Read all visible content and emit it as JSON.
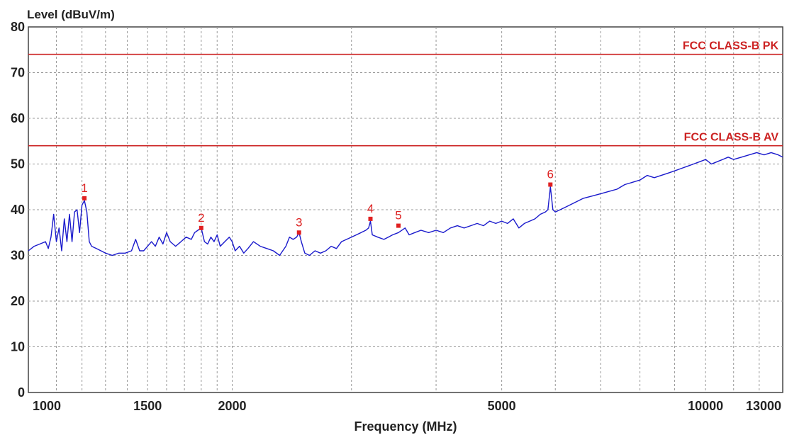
{
  "chart_data": {
    "type": "line",
    "title": "",
    "ylabel": "Level (dBuV/m)",
    "xlabel": "Frequency (MHz)",
    "x_scale": "log",
    "xlim": [
      1000,
      13000
    ],
    "ylim": [
      0,
      80
    ],
    "grid": true,
    "y_ticks": [
      "0",
      "10",
      "20",
      "30",
      "40",
      "50",
      "60",
      "70",
      "80"
    ],
    "x_ticks": [
      {
        "value": 1000,
        "label": "1000"
      },
      {
        "value": 1500,
        "label": "1500"
      },
      {
        "value": 2000,
        "label": "2000"
      },
      {
        "value": 5000,
        "label": "5000"
      },
      {
        "value": 10000,
        "label": "10000"
      },
      {
        "value": 13000,
        "label": "13000"
      }
    ],
    "limit_lines": [
      {
        "name": "FCC CLASS-B PK",
        "value": 74,
        "color": "#cc2222"
      },
      {
        "name": "FCC CLASS-B AV",
        "value": 54,
        "color": "#cc2222"
      }
    ],
    "series": [
      {
        "color": "#1a1acc",
        "points": [
          [
            1000,
            31
          ],
          [
            1020,
            32
          ],
          [
            1040,
            32.5
          ],
          [
            1060,
            33
          ],
          [
            1070,
            31.5
          ],
          [
            1080,
            34
          ],
          [
            1090,
            39
          ],
          [
            1100,
            33
          ],
          [
            1110,
            36
          ],
          [
            1120,
            31
          ],
          [
            1130,
            38
          ],
          [
            1140,
            33
          ],
          [
            1150,
            39
          ],
          [
            1160,
            33
          ],
          [
            1170,
            39.5
          ],
          [
            1180,
            40
          ],
          [
            1190,
            35
          ],
          [
            1200,
            41
          ],
          [
            1210,
            42
          ],
          [
            1220,
            39.5
          ],
          [
            1230,
            33
          ],
          [
            1240,
            32
          ],
          [
            1260,
            31.5
          ],
          [
            1280,
            31
          ],
          [
            1300,
            30.5
          ],
          [
            1330,
            30
          ],
          [
            1360,
            30.5
          ],
          [
            1390,
            30.5
          ],
          [
            1420,
            31
          ],
          [
            1440,
            33.5
          ],
          [
            1460,
            31
          ],
          [
            1480,
            31
          ],
          [
            1500,
            32
          ],
          [
            1520,
            33
          ],
          [
            1540,
            32
          ],
          [
            1560,
            34
          ],
          [
            1580,
            32.5
          ],
          [
            1600,
            35
          ],
          [
            1620,
            33
          ],
          [
            1650,
            32
          ],
          [
            1680,
            33
          ],
          [
            1710,
            34
          ],
          [
            1740,
            33.5
          ],
          [
            1760,
            35
          ],
          [
            1780,
            35.5
          ],
          [
            1800,
            36
          ],
          [
            1820,
            33
          ],
          [
            1840,
            32.5
          ],
          [
            1860,
            34
          ],
          [
            1880,
            33
          ],
          [
            1900,
            34.5
          ],
          [
            1920,
            32
          ],
          [
            1950,
            33
          ],
          [
            1980,
            34
          ],
          [
            2000,
            33
          ],
          [
            2020,
            31
          ],
          [
            2050,
            32
          ],
          [
            2080,
            30.5
          ],
          [
            2110,
            31.5
          ],
          [
            2150,
            33
          ],
          [
            2200,
            32
          ],
          [
            2250,
            31.5
          ],
          [
            2300,
            31
          ],
          [
            2350,
            30
          ],
          [
            2400,
            32
          ],
          [
            2430,
            34
          ],
          [
            2460,
            33.5
          ],
          [
            2490,
            34
          ],
          [
            2510,
            35
          ],
          [
            2530,
            33
          ],
          [
            2560,
            30.5
          ],
          [
            2600,
            30
          ],
          [
            2650,
            31
          ],
          [
            2700,
            30.5
          ],
          [
            2750,
            31
          ],
          [
            2800,
            32
          ],
          [
            2850,
            31.5
          ],
          [
            2900,
            33
          ],
          [
            2950,
            33.5
          ],
          [
            3000,
            34
          ],
          [
            3050,
            34.5
          ],
          [
            3100,
            35
          ],
          [
            3150,
            35.5
          ],
          [
            3180,
            36
          ],
          [
            3200,
            37.5
          ],
          [
            3220,
            34.5
          ],
          [
            3280,
            34
          ],
          [
            3350,
            33.5
          ],
          [
            3400,
            34
          ],
          [
            3450,
            34.5
          ],
          [
            3520,
            35
          ],
          [
            3600,
            36
          ],
          [
            3650,
            34.5
          ],
          [
            3720,
            35
          ],
          [
            3800,
            35.5
          ],
          [
            3900,
            35
          ],
          [
            4000,
            35.5
          ],
          [
            4100,
            35
          ],
          [
            4200,
            36
          ],
          [
            4300,
            36.5
          ],
          [
            4400,
            36
          ],
          [
            4500,
            36.5
          ],
          [
            4600,
            37
          ],
          [
            4700,
            36.5
          ],
          [
            4800,
            37.5
          ],
          [
            4900,
            37
          ],
          [
            5000,
            37.5
          ],
          [
            5100,
            37
          ],
          [
            5200,
            38
          ],
          [
            5300,
            36
          ],
          [
            5400,
            37
          ],
          [
            5500,
            37.5
          ],
          [
            5600,
            38
          ],
          [
            5700,
            39
          ],
          [
            5800,
            39.5
          ],
          [
            5850,
            40
          ],
          [
            5900,
            45
          ],
          [
            5950,
            40
          ],
          [
            6000,
            39.5
          ],
          [
            6200,
            40.5
          ],
          [
            6400,
            41.5
          ],
          [
            6600,
            42.5
          ],
          [
            6800,
            43
          ],
          [
            7000,
            43.5
          ],
          [
            7200,
            44
          ],
          [
            7400,
            44.5
          ],
          [
            7600,
            45.5
          ],
          [
            7800,
            46
          ],
          [
            8000,
            46.5
          ],
          [
            8200,
            47.5
          ],
          [
            8400,
            47
          ],
          [
            8600,
            47.5
          ],
          [
            8800,
            48
          ],
          [
            9000,
            48.5
          ],
          [
            9200,
            49
          ],
          [
            9400,
            49.5
          ],
          [
            9600,
            50
          ],
          [
            9800,
            50.5
          ],
          [
            10000,
            51
          ],
          [
            10200,
            50
          ],
          [
            10400,
            50.5
          ],
          [
            10600,
            51
          ],
          [
            10800,
            51.5
          ],
          [
            11000,
            51
          ],
          [
            11300,
            51.5
          ],
          [
            11600,
            52
          ],
          [
            11900,
            52.5
          ],
          [
            12200,
            52
          ],
          [
            12500,
            52.5
          ],
          [
            12800,
            52
          ],
          [
            13000,
            51.5
          ]
        ]
      }
    ],
    "markers": [
      {
        "label": "1",
        "x": 1210,
        "y": 42.5
      },
      {
        "label": "2",
        "x": 1800,
        "y": 36
      },
      {
        "label": "3",
        "x": 2510,
        "y": 35
      },
      {
        "label": "4",
        "x": 3200,
        "y": 38
      },
      {
        "label": "5",
        "x": 3520,
        "y": 36.5
      },
      {
        "label": "6",
        "x": 5900,
        "y": 45.5
      }
    ]
  }
}
